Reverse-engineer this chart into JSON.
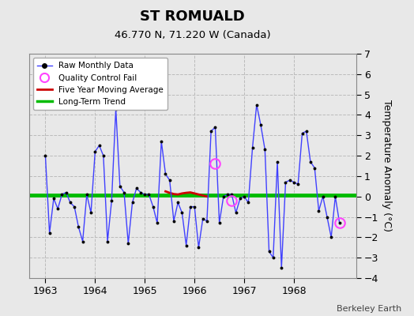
{
  "title": "ST ROMUALD",
  "subtitle": "46.770 N, 71.220 W (Canada)",
  "ylabel": "Temperature Anomaly (°C)",
  "credit": "Berkeley Earth",
  "background_color": "#e8e8e8",
  "plot_bg_color": "#e8e8e8",
  "ylim": [
    -4,
    7
  ],
  "yticks": [
    -4,
    -3,
    -2,
    -1,
    0,
    1,
    2,
    3,
    4,
    5,
    6,
    7
  ],
  "xlim": [
    1962.67,
    1969.25
  ],
  "xticks": [
    1963,
    1964,
    1965,
    1966,
    1967,
    1968
  ],
  "raw_data": {
    "times": [
      1963.0,
      1963.083,
      1963.167,
      1963.25,
      1963.333,
      1963.417,
      1963.5,
      1963.583,
      1963.667,
      1963.75,
      1963.833,
      1963.917,
      1964.0,
      1964.083,
      1964.167,
      1964.25,
      1964.333,
      1964.417,
      1964.5,
      1964.583,
      1964.667,
      1964.75,
      1964.833,
      1964.917,
      1965.0,
      1965.083,
      1965.167,
      1965.25,
      1965.333,
      1965.417,
      1965.5,
      1965.583,
      1965.667,
      1965.75,
      1965.833,
      1965.917,
      1966.0,
      1966.083,
      1966.167,
      1966.25,
      1966.333,
      1966.417,
      1966.5,
      1966.583,
      1966.667,
      1966.75,
      1966.833,
      1966.917,
      1967.0,
      1967.083,
      1967.167,
      1967.25,
      1967.333,
      1967.417,
      1967.5,
      1967.583,
      1967.667,
      1967.75,
      1967.833,
      1967.917,
      1968.0,
      1968.083,
      1968.167,
      1968.25,
      1968.333,
      1968.417,
      1968.5,
      1968.583,
      1968.667,
      1968.75,
      1968.833,
      1968.917
    ],
    "values": [
      2.0,
      -1.8,
      -0.1,
      -0.6,
      0.1,
      0.2,
      -0.3,
      -0.5,
      -1.5,
      -2.2,
      0.1,
      -0.8,
      2.2,
      2.5,
      2.0,
      -2.2,
      -0.2,
      4.3,
      0.5,
      0.2,
      -2.3,
      -0.3,
      0.4,
      0.2,
      0.1,
      0.1,
      -0.5,
      -1.3,
      2.7,
      1.1,
      0.8,
      -1.2,
      -0.3,
      -0.8,
      -2.4,
      -0.5,
      -0.5,
      -2.5,
      -1.1,
      -1.2,
      3.2,
      3.4,
      -1.3,
      0.0,
      0.1,
      0.1,
      -0.8,
      -0.1,
      0.0,
      -0.3,
      2.4,
      4.5,
      3.5,
      2.3,
      -2.7,
      -3.0,
      1.7,
      -3.5,
      0.7,
      0.8,
      0.7,
      0.6,
      3.1,
      3.2,
      1.7,
      1.4,
      -0.7,
      0.0,
      -1.0,
      -2.0,
      -0.0,
      -1.3
    ]
  },
  "qc_fail_points": [
    {
      "time": 1966.417,
      "value": 1.6
    },
    {
      "time": 1966.75,
      "value": -0.2
    },
    {
      "time": 1968.917,
      "value": -1.3
    }
  ],
  "five_year_ma": {
    "times": [
      1965.417,
      1965.5,
      1965.583,
      1965.667,
      1965.75,
      1965.833,
      1965.917,
      1966.0,
      1966.083,
      1966.167,
      1966.25
    ],
    "values": [
      0.25,
      0.18,
      0.12,
      0.1,
      0.15,
      0.18,
      0.2,
      0.15,
      0.1,
      0.05,
      0.0
    ]
  },
  "long_term_trend": {
    "times": [
      1962.67,
      1969.25
    ],
    "values": [
      0.08,
      0.08
    ]
  },
  "line_color": "#4040ff",
  "marker_color": "#000000",
  "five_year_color": "#cc0000",
  "trend_color": "#00bb00",
  "qc_marker_color": "#ff44ff",
  "grid_color": "#bbbbbb",
  "grid_linestyle": "--",
  "spine_color": "#888888"
}
